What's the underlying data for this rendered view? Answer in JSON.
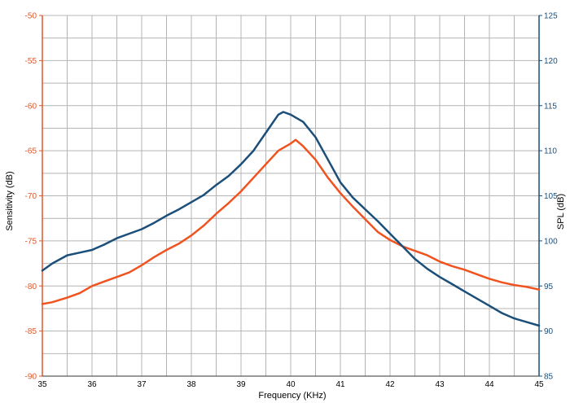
{
  "colors": {
    "left_axis": "#e0562a",
    "right_axis": "#1b4f7a",
    "grid": "#b4b4b4",
    "sensitivity_series": "#f0531f",
    "spl_series": "#1b4f7a"
  },
  "chart_data": {
    "type": "line",
    "title": "",
    "xlabel": "Frequency (KHz)",
    "ylabel": "Sensitivity (dB)",
    "y2label": "SPL (dB)",
    "xlim": [
      35,
      45
    ],
    "ylim": [
      -90,
      -50
    ],
    "y2lim": [
      85,
      125
    ],
    "grid": true,
    "x_ticks": [
      "35",
      "36",
      "37",
      "38",
      "39",
      "40",
      "41",
      "42",
      "43",
      "44",
      "45"
    ],
    "y_ticks": [
      "-50",
      "-55",
      "-60",
      "-65",
      "-70",
      "-75",
      "-80",
      "-85",
      "-90"
    ],
    "y2_ticks": [
      "125",
      "120",
      "115",
      "110",
      "105",
      "100",
      "95",
      "90",
      "85"
    ],
    "series": [
      {
        "axis": "left",
        "color": "#f0531f",
        "x": [
          35,
          35.2,
          35.5,
          35.75,
          36,
          36.25,
          36.5,
          36.75,
          37,
          37.25,
          37.5,
          37.75,
          38,
          38.25,
          38.5,
          38.75,
          39,
          39.25,
          39.5,
          39.75,
          40,
          40.1,
          40.25,
          40.5,
          40.75,
          41,
          41.25,
          41.5,
          41.75,
          42,
          42.25,
          42.5,
          42.75,
          43,
          43.25,
          43.5,
          43.75,
          44,
          44.25,
          44.5,
          44.75,
          45
        ],
        "y": [
          -82,
          -81.8,
          -81.3,
          -80.8,
          -80.0,
          -79.5,
          -79.0,
          -78.5,
          -77.7,
          -76.8,
          -76.0,
          -75.3,
          -74.4,
          -73.3,
          -72.0,
          -70.8,
          -69.5,
          -68.0,
          -66.5,
          -65.0,
          -64.2,
          -63.8,
          -64.5,
          -66.0,
          -68.0,
          -69.7,
          -71.2,
          -72.6,
          -74.0,
          -74.9,
          -75.6,
          -76.1,
          -76.6,
          -77.3,
          -77.8,
          -78.2,
          -78.7,
          -79.2,
          -79.6,
          -79.9,
          -80.1,
          -80.4
        ]
      },
      {
        "axis": "right",
        "color": "#1b4f7a",
        "x": [
          35,
          35.2,
          35.5,
          35.75,
          36,
          36.25,
          36.5,
          36.75,
          37,
          37.25,
          37.5,
          37.75,
          38,
          38.25,
          38.5,
          38.75,
          39,
          39.25,
          39.5,
          39.75,
          39.85,
          40,
          40.25,
          40.5,
          40.75,
          41,
          41.25,
          41.5,
          41.75,
          42,
          42.25,
          42.5,
          42.75,
          43,
          43.25,
          43.5,
          43.75,
          44,
          44.25,
          44.5,
          44.75,
          45
        ],
        "y": [
          96.7,
          97.5,
          98.4,
          98.7,
          99.0,
          99.6,
          100.3,
          100.8,
          101.3,
          102.0,
          102.8,
          103.5,
          104.3,
          105.1,
          106.2,
          107.2,
          108.5,
          110.0,
          112.0,
          114.0,
          114.3,
          114.0,
          113.2,
          111.5,
          109.0,
          106.5,
          104.8,
          103.5,
          102.2,
          100.8,
          99.4,
          98.0,
          96.9,
          96.0,
          95.2,
          94.4,
          93.6,
          92.8,
          92.0,
          91.4,
          91.0,
          90.6
        ]
      }
    ]
  }
}
